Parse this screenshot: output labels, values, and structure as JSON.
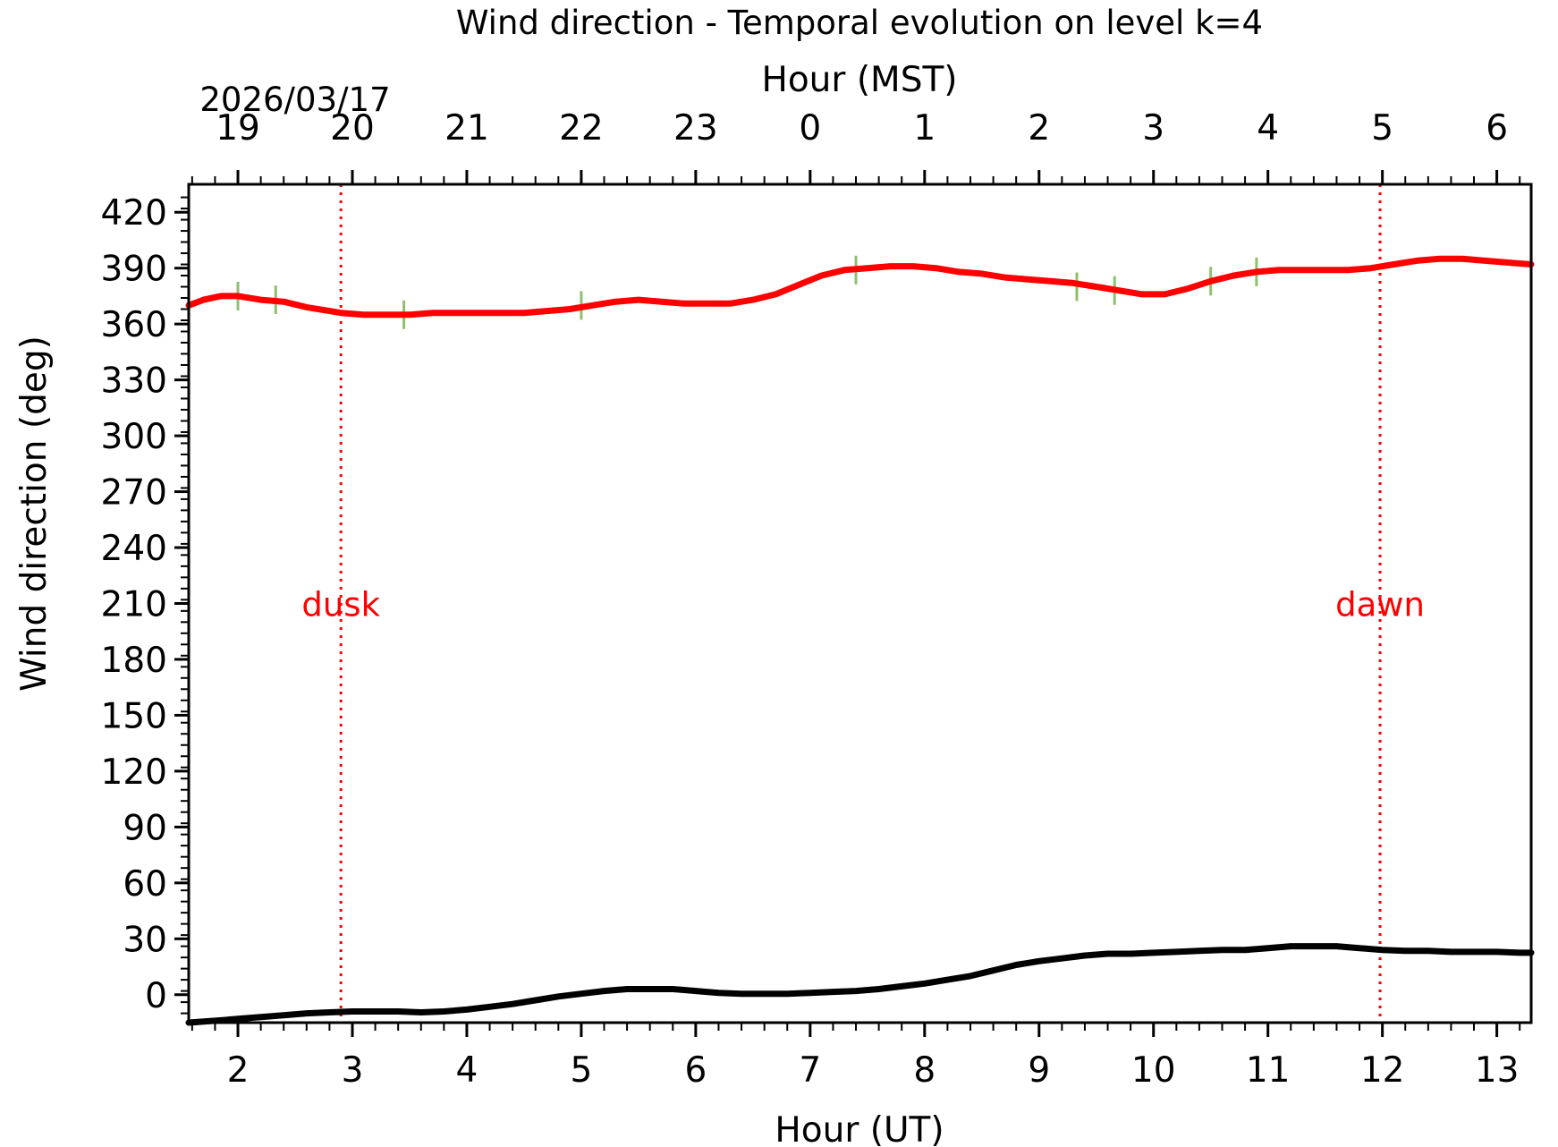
{
  "chart_data": {
    "type": "line",
    "title": "Wind direction - Temporal evolution on level k=4",
    "date_label": "2026/03/17",
    "xlabel": "Hour (UT)",
    "xlabel_top": "Hour (MST)",
    "ylabel": "Wind direction (deg)",
    "xlim": [
      1.57,
      13.3
    ],
    "ylim": [
      -15,
      435
    ],
    "x_ticks": [
      2,
      3,
      4,
      5,
      6,
      7,
      8,
      9,
      10,
      11,
      12,
      13
    ],
    "x_tick_labels": [
      "2",
      "3",
      "4",
      "5",
      "6",
      "7",
      "8",
      "9",
      "10",
      "11",
      "12",
      "13"
    ],
    "x_ticks_top": [
      2,
      3,
      4,
      5,
      6,
      7,
      8,
      9,
      10,
      11,
      12,
      13
    ],
    "x_tick_labels_top": [
      "19",
      "20",
      "21",
      "22",
      "23",
      "0",
      "1",
      "2",
      "3",
      "4",
      "5",
      "6"
    ],
    "y_ticks": [
      0,
      30,
      60,
      90,
      120,
      150,
      180,
      210,
      240,
      270,
      300,
      330,
      360,
      390,
      420
    ],
    "y_tick_labels": [
      "0",
      "30",
      "60",
      "90",
      "120",
      "150",
      "180",
      "210",
      "240",
      "270",
      "300",
      "330",
      "360",
      "390",
      "420"
    ],
    "grid": false,
    "annotations": [
      {
        "text": "dusk",
        "x": 2.9,
        "y": 210,
        "color": "#ff0000",
        "line_style": "dotted"
      },
      {
        "text": "dawn",
        "x": 11.98,
        "y": 210,
        "color": "#ff0000",
        "line_style": "dotted"
      }
    ],
    "series": [
      {
        "color": "#ff0000",
        "error_color": "#8fbf6f",
        "x": [
          1.57,
          1.7,
          1.85,
          2.0,
          2.2,
          2.4,
          2.6,
          2.8,
          2.9,
          3.1,
          3.3,
          3.5,
          3.7,
          3.9,
          4.1,
          4.3,
          4.5,
          4.7,
          4.9,
          5.1,
          5.3,
          5.5,
          5.7,
          5.9,
          6.1,
          6.3,
          6.5,
          6.7,
          6.9,
          7.1,
          7.3,
          7.5,
          7.7,
          7.9,
          8.1,
          8.3,
          8.5,
          8.7,
          8.9,
          9.1,
          9.3,
          9.5,
          9.7,
          9.9,
          10.1,
          10.3,
          10.5,
          10.7,
          10.9,
          11.1,
          11.3,
          11.5,
          11.7,
          11.9,
          12.1,
          12.3,
          12.5,
          12.7,
          12.9,
          13.1,
          13.3
        ],
        "y": [
          370,
          373,
          375,
          375,
          373,
          372,
          369,
          367,
          366,
          365,
          365,
          365,
          366,
          366,
          366,
          366,
          366,
          367,
          368,
          370,
          372,
          373,
          372,
          371,
          371,
          371,
          373,
          376,
          381,
          386,
          389,
          390,
          391,
          391,
          390,
          388,
          387,
          385,
          384,
          383,
          382,
          380,
          378,
          376,
          376,
          379,
          383,
          386,
          388,
          389,
          389,
          389,
          389,
          390,
          392,
          394,
          395,
          395,
          394,
          393,
          392
        ],
        "error_x": [
          2.0,
          2.33,
          3.45,
          5.0,
          7.4,
          9.33,
          9.66,
          10.5,
          10.9
        ],
        "error_y": [
          375,
          373,
          365,
          370,
          389,
          380,
          378,
          383,
          388
        ]
      },
      {
        "color": "#000000",
        "x": [
          1.57,
          1.8,
          2.0,
          2.2,
          2.4,
          2.6,
          2.8,
          3.0,
          3.2,
          3.4,
          3.6,
          3.8,
          4.0,
          4.2,
          4.4,
          4.6,
          4.8,
          5.0,
          5.2,
          5.4,
          5.6,
          5.8,
          6.0,
          6.2,
          6.4,
          6.6,
          6.8,
          7.0,
          7.2,
          7.4,
          7.6,
          7.8,
          8.0,
          8.2,
          8.4,
          8.6,
          8.8,
          9.0,
          9.2,
          9.4,
          9.6,
          9.8,
          10.0,
          10.2,
          10.4,
          10.6,
          10.8,
          11.0,
          11.2,
          11.4,
          11.6,
          11.8,
          12.0,
          12.2,
          12.4,
          12.6,
          12.8,
          13.0,
          13.2,
          13.3
        ],
        "y": [
          -15,
          -14,
          -13,
          -12,
          -11,
          -10,
          -9.5,
          -9,
          -9,
          -9,
          -9.5,
          -9,
          -8,
          -6.5,
          -5,
          -3,
          -1,
          0.5,
          2,
          3,
          3,
          3,
          2,
          1,
          0.5,
          0.5,
          0.5,
          1,
          1.5,
          2,
          3,
          4.5,
          6,
          8,
          10,
          13,
          16,
          18,
          19.5,
          21,
          22,
          22,
          22.5,
          23,
          23.5,
          24,
          24,
          25,
          26,
          26,
          26,
          25,
          24,
          23.5,
          23.5,
          23,
          23,
          23,
          22.5,
          22.5
        ]
      }
    ]
  }
}
